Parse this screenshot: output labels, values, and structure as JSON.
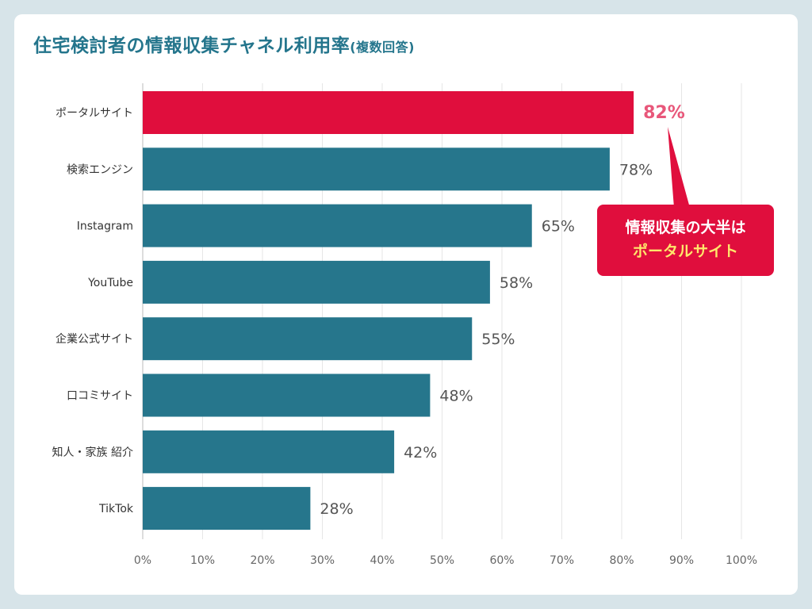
{
  "chart_data": {
    "type": "bar",
    "orientation": "horizontal",
    "title": "住宅検討者の情報収集チャネル利用率",
    "subtitle": "(複数回答)",
    "categories": [
      "ポータルサイト",
      "検索エンジン",
      "Instagram",
      "YouTube",
      "企業公式サイト",
      "口コミサイト",
      "知人・家族 紹介",
      "TikTok"
    ],
    "values": [
      82,
      78,
      65,
      58,
      55,
      48,
      42,
      28
    ],
    "value_labels": [
      "82%",
      "78%",
      "65%",
      "58%",
      "55%",
      "48%",
      "42%",
      "28%"
    ],
    "xlim": [
      0,
      100
    ],
    "xticks": [
      "0%",
      "10%",
      "20%",
      "30%",
      "40%",
      "50%",
      "60%",
      "70%",
      "80%",
      "90%",
      "100%"
    ],
    "grid": true,
    "highlight_index": 0,
    "annotation": {
      "line1": "情報収集の大半は",
      "line2": "ポータルサイト"
    },
    "colors": {
      "bar": "#26768c",
      "highlight": "#e00e3d",
      "highlight_label": "#e8577a",
      "label": "#555555",
      "title": "#24758c"
    }
  }
}
